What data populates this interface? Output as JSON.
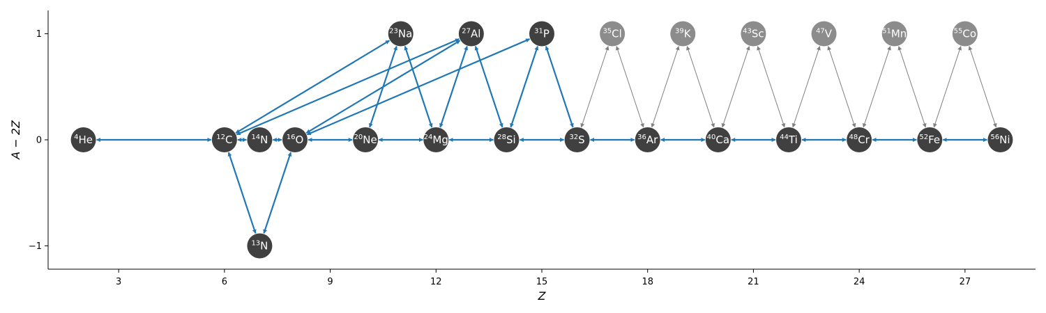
{
  "chart_data": {
    "type": "scatter",
    "xlabel": "Z",
    "ylabel": "A − 2Z",
    "xlim": [
      1.0,
      29.0
    ],
    "ylim": [
      -1.22,
      1.22
    ],
    "xticks": [
      3,
      6,
      9,
      12,
      15,
      18,
      21,
      24,
      27
    ],
    "yticks": [
      -1,
      0,
      1
    ],
    "ytick_labels": [
      "−1",
      "0",
      "1"
    ],
    "grid": false,
    "colors": {
      "main_node": "#404040",
      "faded_node": "#8c8c8c",
      "main_edge": "#1f77b4",
      "faded_edge": "#808080",
      "node_text": "#ffffff"
    },
    "nuclides": [
      {
        "id": "he4",
        "mass": "4",
        "symbol": "He",
        "z": 2,
        "y": 0,
        "faded": false
      },
      {
        "id": "c12",
        "mass": "12",
        "symbol": "C",
        "z": 6,
        "y": 0,
        "faded": false
      },
      {
        "id": "n13",
        "mass": "13",
        "symbol": "N",
        "z": 7,
        "y": -1,
        "faded": false
      },
      {
        "id": "n14",
        "mass": "14",
        "symbol": "N",
        "z": 7,
        "y": 0,
        "faded": false
      },
      {
        "id": "o16",
        "mass": "16",
        "symbol": "O",
        "z": 8,
        "y": 0,
        "faded": false
      },
      {
        "id": "ne20",
        "mass": "20",
        "symbol": "Ne",
        "z": 10,
        "y": 0,
        "faded": false
      },
      {
        "id": "na23",
        "mass": "23",
        "symbol": "Na",
        "z": 11,
        "y": 1,
        "faded": false
      },
      {
        "id": "mg24",
        "mass": "24",
        "symbol": "Mg",
        "z": 12,
        "y": 0,
        "faded": false
      },
      {
        "id": "al27",
        "mass": "27",
        "symbol": "Al",
        "z": 13,
        "y": 1,
        "faded": false
      },
      {
        "id": "si28",
        "mass": "28",
        "symbol": "Si",
        "z": 14,
        "y": 0,
        "faded": false
      },
      {
        "id": "p31",
        "mass": "31",
        "symbol": "P",
        "z": 15,
        "y": 1,
        "faded": false
      },
      {
        "id": "s32",
        "mass": "32",
        "symbol": "S",
        "z": 16,
        "y": 0,
        "faded": false
      },
      {
        "id": "cl35",
        "mass": "35",
        "symbol": "Cl",
        "z": 17,
        "y": 1,
        "faded": true
      },
      {
        "id": "ar36",
        "mass": "36",
        "symbol": "Ar",
        "z": 18,
        "y": 0,
        "faded": false
      },
      {
        "id": "k39",
        "mass": "39",
        "symbol": "K",
        "z": 19,
        "y": 1,
        "faded": true
      },
      {
        "id": "ca40",
        "mass": "40",
        "symbol": "Ca",
        "z": 20,
        "y": 0,
        "faded": false
      },
      {
        "id": "sc43",
        "mass": "43",
        "symbol": "Sc",
        "z": 21,
        "y": 1,
        "faded": true
      },
      {
        "id": "ti44",
        "mass": "44",
        "symbol": "Ti",
        "z": 22,
        "y": 0,
        "faded": false
      },
      {
        "id": "v47",
        "mass": "47",
        "symbol": "V",
        "z": 23,
        "y": 1,
        "faded": true
      },
      {
        "id": "cr48",
        "mass": "48",
        "symbol": "Cr",
        "z": 24,
        "y": 0,
        "faded": false
      },
      {
        "id": "mn51",
        "mass": "51",
        "symbol": "Mn",
        "z": 25,
        "y": 1,
        "faded": true
      },
      {
        "id": "fe52",
        "mass": "52",
        "symbol": "Fe",
        "z": 26,
        "y": 0,
        "faded": false
      },
      {
        "id": "co55",
        "mass": "55",
        "symbol": "Co",
        "z": 27,
        "y": 1,
        "faded": true
      },
      {
        "id": "ni56",
        "mass": "56",
        "symbol": "Ni",
        "z": 28,
        "y": 0,
        "faded": false
      }
    ],
    "links": [
      {
        "from": "he4",
        "to": "c12",
        "faded": false
      },
      {
        "from": "c12",
        "to": "n13",
        "faded": false
      },
      {
        "from": "n13",
        "to": "o16",
        "faded": false
      },
      {
        "from": "c12",
        "to": "n14",
        "faded": false
      },
      {
        "from": "n14",
        "to": "o16",
        "faded": false
      },
      {
        "from": "c12",
        "to": "na23",
        "faded": false
      },
      {
        "from": "c12",
        "to": "al27",
        "faded": false
      },
      {
        "from": "o16",
        "to": "al27",
        "faded": false
      },
      {
        "from": "o16",
        "to": "p31",
        "faded": false
      },
      {
        "from": "o16",
        "to": "ne20",
        "faded": false
      },
      {
        "from": "ne20",
        "to": "mg24",
        "faded": false
      },
      {
        "from": "ne20",
        "to": "na23",
        "faded": false
      },
      {
        "from": "na23",
        "to": "mg24",
        "faded": false
      },
      {
        "from": "mg24",
        "to": "si28",
        "faded": false
      },
      {
        "from": "mg24",
        "to": "al27",
        "faded": false
      },
      {
        "from": "al27",
        "to": "si28",
        "faded": false
      },
      {
        "from": "si28",
        "to": "s32",
        "faded": false
      },
      {
        "from": "si28",
        "to": "p31",
        "faded": false
      },
      {
        "from": "p31",
        "to": "s32",
        "faded": false
      },
      {
        "from": "s32",
        "to": "ar36",
        "faded": false
      },
      {
        "from": "ar36",
        "to": "ca40",
        "faded": false
      },
      {
        "from": "ca40",
        "to": "ti44",
        "faded": false
      },
      {
        "from": "ti44",
        "to": "cr48",
        "faded": false
      },
      {
        "from": "cr48",
        "to": "fe52",
        "faded": false
      },
      {
        "from": "fe52",
        "to": "ni56",
        "faded": false
      },
      {
        "from": "s32",
        "to": "cl35",
        "faded": true
      },
      {
        "from": "cl35",
        "to": "ar36",
        "faded": true
      },
      {
        "from": "ar36",
        "to": "k39",
        "faded": true
      },
      {
        "from": "k39",
        "to": "ca40",
        "faded": true
      },
      {
        "from": "ca40",
        "to": "sc43",
        "faded": true
      },
      {
        "from": "sc43",
        "to": "ti44",
        "faded": true
      },
      {
        "from": "ti44",
        "to": "v47",
        "faded": true
      },
      {
        "from": "v47",
        "to": "cr48",
        "faded": true
      },
      {
        "from": "cr48",
        "to": "mn51",
        "faded": true
      },
      {
        "from": "mn51",
        "to": "fe52",
        "faded": true
      },
      {
        "from": "fe52",
        "to": "co55",
        "faded": true
      },
      {
        "from": "co55",
        "to": "ni56",
        "faded": true
      }
    ]
  }
}
